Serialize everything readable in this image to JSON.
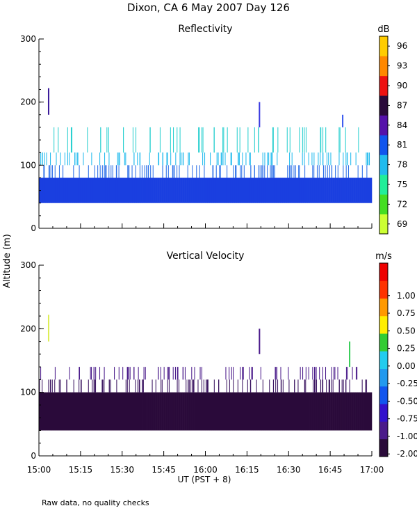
{
  "figure": {
    "title": "Dixon, CA  6 May 2007  Day 126",
    "ylabel": "Altitude (m)",
    "xlabel": "UT  (PST + 8)",
    "footnote": "Raw data, no quality checks"
  },
  "chart_data": [
    {
      "type": "heatmap",
      "title": "Reflectivity",
      "ylabel": "Altitude (m)",
      "xlabel": "UT  (PST + 8)",
      "x_ticks": [
        "15:00",
        "15:15",
        "15:30",
        "15:45",
        "16:00",
        "16:15",
        "16:30",
        "16:45",
        "17:00"
      ],
      "x_range_minutes": [
        0,
        120
      ],
      "y_ticks": [
        0,
        100,
        200,
        300
      ],
      "ylim": [
        0,
        300
      ],
      "colorbar": {
        "unit": "dB",
        "labels": [
          "69",
          "72",
          "75",
          "78",
          "81",
          "84",
          "87",
          "90",
          "93",
          "96"
        ],
        "colors": [
          "#ccff33",
          "#44dd22",
          "#22ee99",
          "#22bbee",
          "#1155ee",
          "#5511aa",
          "#2a0a3a",
          "#ee1111",
          "#ff8800",
          "#ffcc00"
        ]
      },
      "profile_floor_m": 40,
      "clusters": [
        {
          "color": "#1a3fe0",
          "top_m": 80
        },
        {
          "color": "#2b6fe8",
          "top_m": 100
        },
        {
          "color": "#22bbee",
          "top_m": 120
        },
        {
          "color": "#2ad0d0",
          "top_m": 160
        }
      ],
      "spikes": [
        {
          "minute": 3.5,
          "bottom_m": 180,
          "top_m": 222,
          "color": "#3a1a9a"
        },
        {
          "minute": 79.5,
          "bottom_m": 160,
          "top_m": 200,
          "color": "#3a3ae0"
        },
        {
          "minute": 109.5,
          "bottom_m": 160,
          "top_m": 180,
          "color": "#3355ee"
        }
      ]
    },
    {
      "type": "heatmap",
      "title": "Vertical Velocity",
      "ylabel": "Altitude (m)",
      "xlabel": "UT  (PST + 8)",
      "x_ticks": [
        "15:00",
        "15:15",
        "15:30",
        "15:45",
        "16:00",
        "16:15",
        "16:30",
        "16:45",
        "17:00"
      ],
      "x_range_minutes": [
        0,
        120
      ],
      "y_ticks": [
        0,
        100,
        200,
        300
      ],
      "ylim": [
        0,
        300
      ],
      "colorbar": {
        "unit": "m/s",
        "labels": [
          "-2.00",
          "-1.00",
          "-0.75",
          "-0.50",
          "-0.25",
          "0.00",
          "0.25",
          "0.50",
          "0.75",
          "1.00"
        ],
        "colors": [
          "#2a0a3a",
          "#4a1a8a",
          "#3311cc",
          "#1155ee",
          "#2299ee",
          "#22ccee",
          "#33cc33",
          "#ffee00",
          "#ff9900",
          "#ff3300",
          "#ee0000"
        ]
      },
      "profile_floor_m": 40,
      "clusters": [
        {
          "color": "#2a0a3a",
          "top_m": 100
        },
        {
          "color": "#3a1460",
          "top_m": 120
        },
        {
          "color": "#4a1a8a",
          "top_m": 140
        }
      ],
      "spikes": [
        {
          "minute": 3.5,
          "bottom_m": 180,
          "top_m": 222,
          "color": "#ddee55"
        },
        {
          "minute": 79.5,
          "bottom_m": 160,
          "top_m": 200,
          "color": "#4a1a8a"
        },
        {
          "minute": 112,
          "bottom_m": 140,
          "top_m": 180,
          "color": "#33cc55"
        }
      ]
    }
  ]
}
